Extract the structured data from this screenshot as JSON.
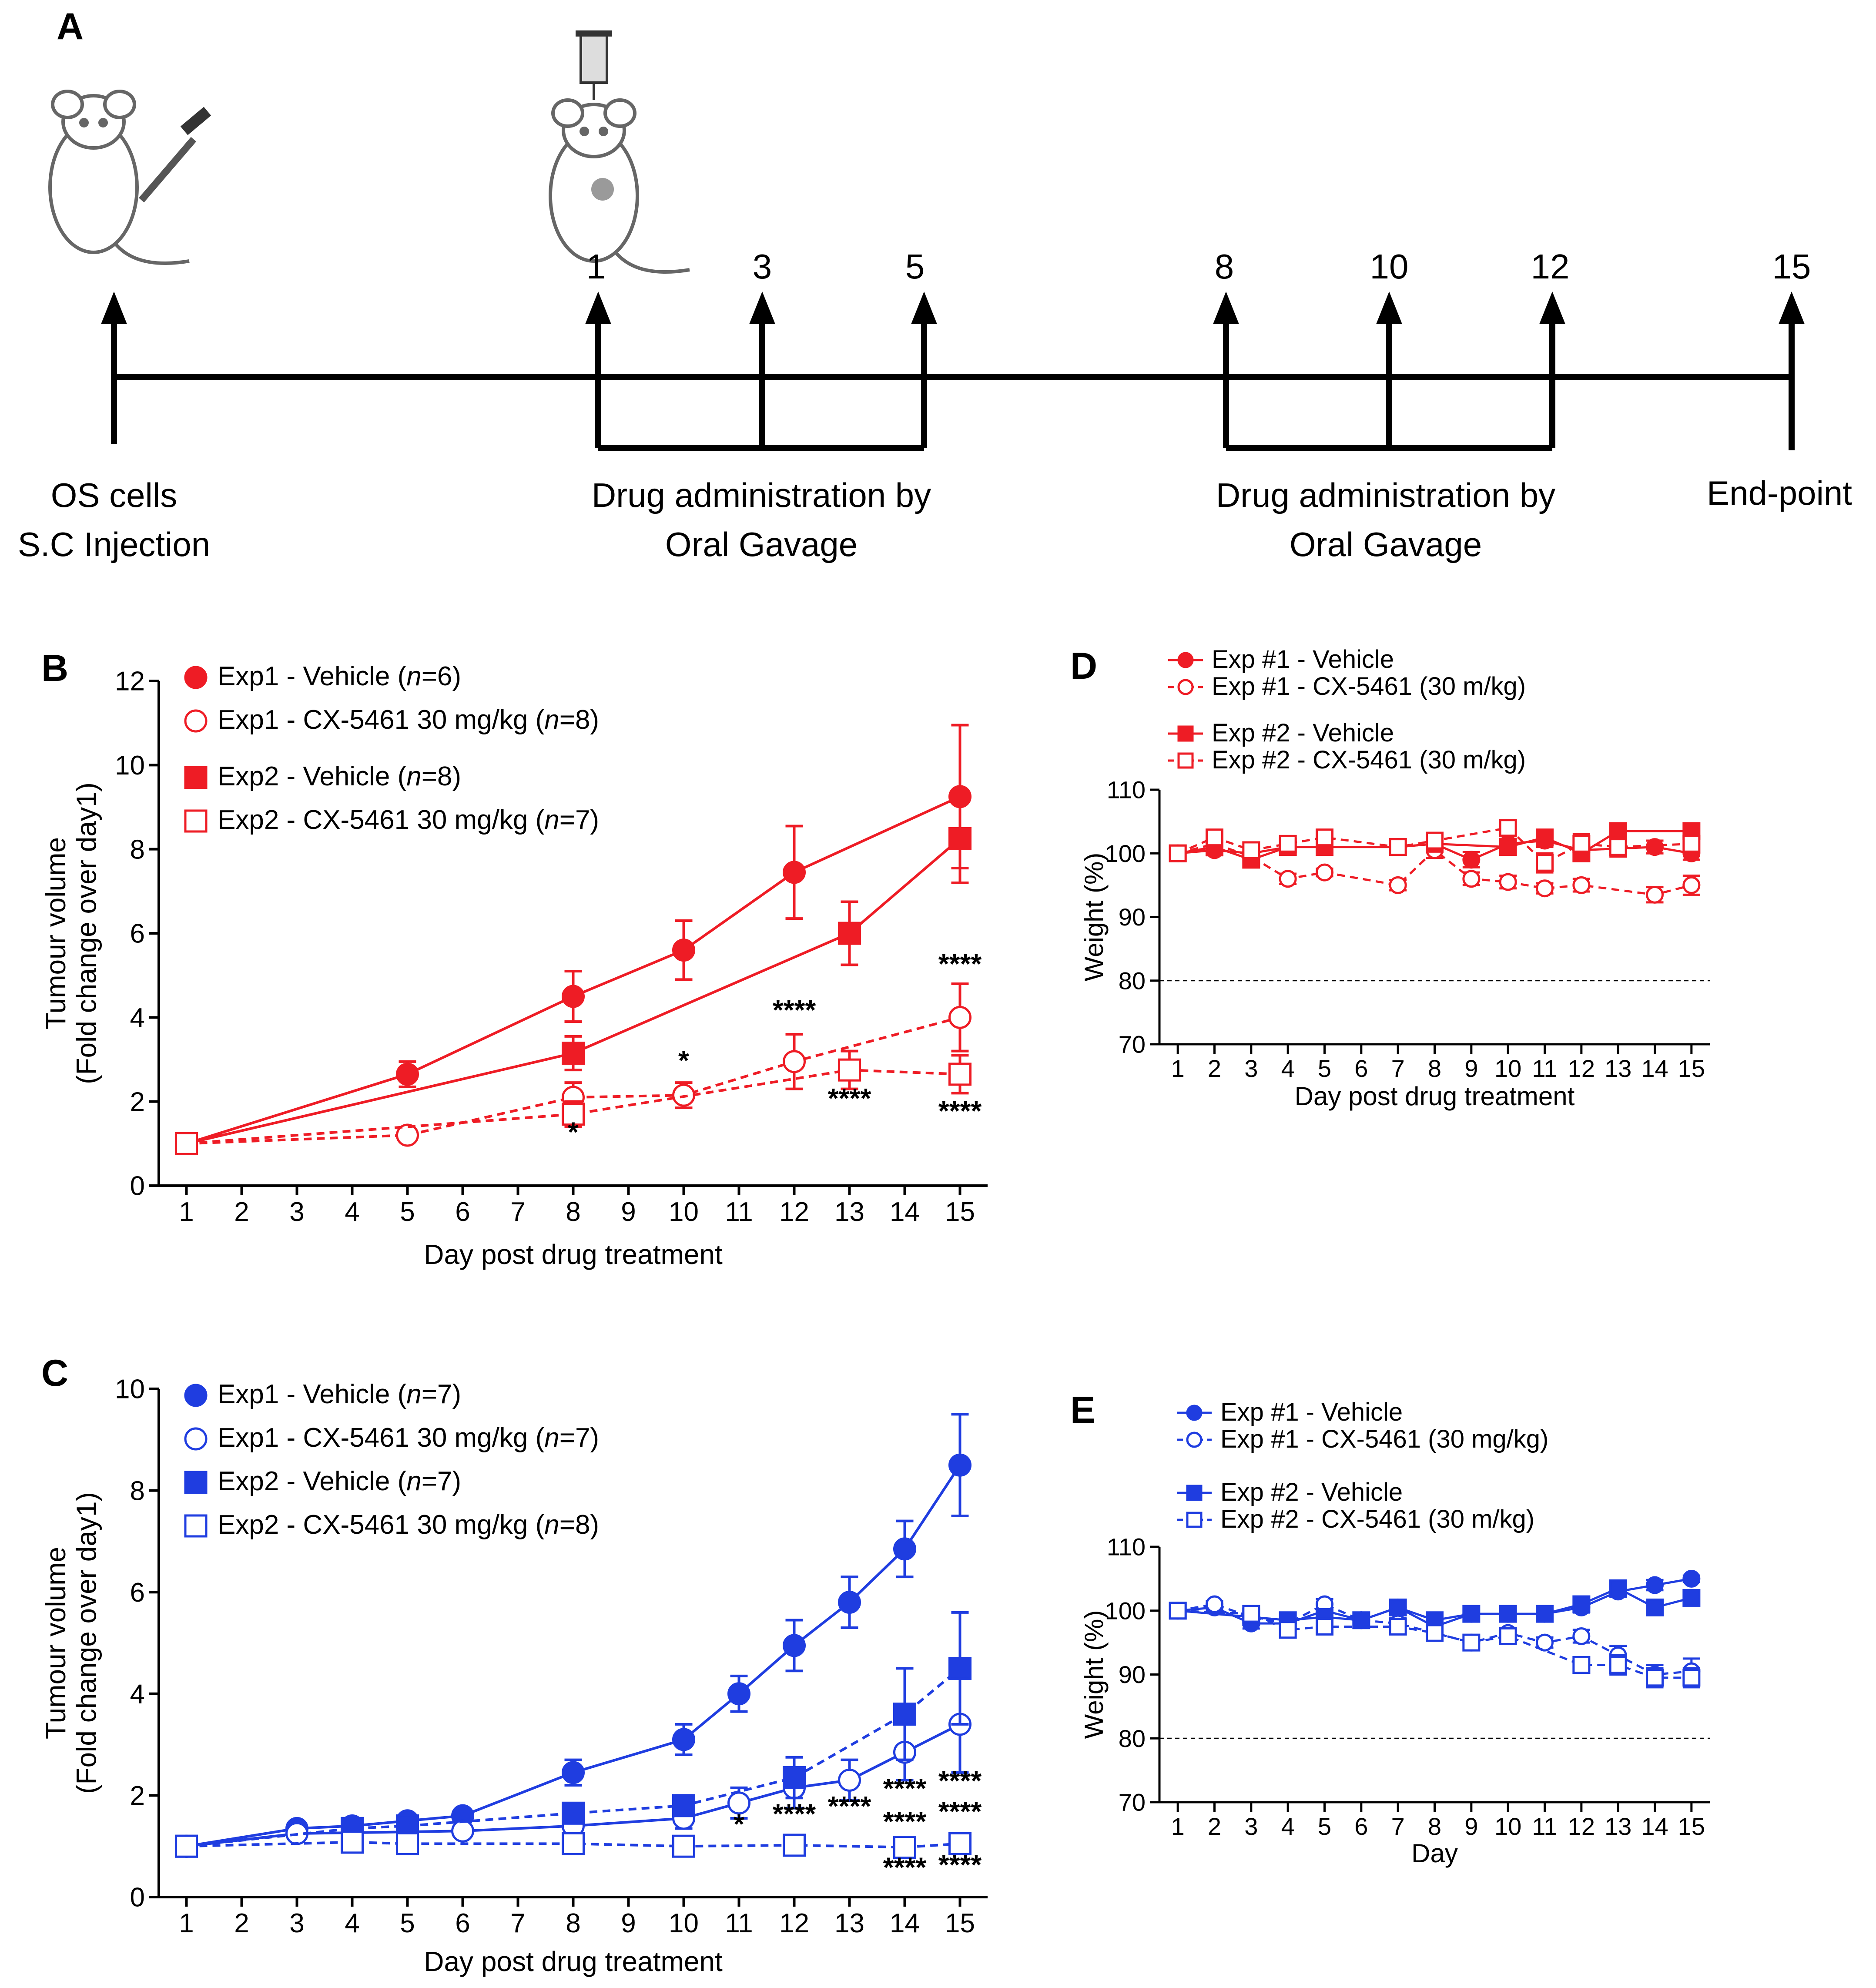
{
  "panel_letters": {
    "a": "A",
    "b": "B",
    "c": "C",
    "d": "D",
    "e": "E"
  },
  "timeline": {
    "days": [
      "1",
      "3",
      "5",
      "8",
      "10",
      "12",
      "15"
    ],
    "events": {
      "injection": [
        "OS cells",
        "S.C Injection"
      ],
      "dosing_1": [
        "Drug administration by",
        "Oral Gavage"
      ],
      "dosing_2": [
        "Drug administration by",
        "Oral Gavage"
      ],
      "endpoint": [
        "End-point"
      ]
    }
  },
  "colors": {
    "red": "#ee1c25",
    "blue": "#1f3de0",
    "black": "#000000"
  },
  "chart_data": [
    {
      "id": "B",
      "type": "line",
      "title": "",
      "xlabel": "Day post drug treatment",
      "ylabel": [
        "Tumour volume",
        "(Fold change over day1)"
      ],
      "xlim": [
        0.5,
        15.5
      ],
      "ylim": [
        0,
        12
      ],
      "x_ticks": [
        1,
        2,
        3,
        4,
        5,
        6,
        7,
        8,
        9,
        10,
        11,
        12,
        13,
        14,
        15
      ],
      "y_ticks": [
        0,
        2,
        4,
        6,
        8,
        10,
        12
      ],
      "series": [
        {
          "name": "Exp1 - Vehicle",
          "n": "6",
          "marker": "circle",
          "filled": true,
          "dashed": false,
          "x": [
            1,
            5,
            8,
            10,
            12,
            15
          ],
          "y": [
            1.0,
            2.65,
            4.5,
            5.6,
            7.45,
            9.25
          ],
          "err": [
            0.05,
            0.3,
            0.6,
            0.7,
            1.1,
            1.7
          ]
        },
        {
          "name": "Exp1 - CX-5461 30 mg/kg",
          "n": "8",
          "marker": "circle",
          "filled": false,
          "dashed": true,
          "x": [
            1,
            5,
            8,
            10,
            12,
            15
          ],
          "y": [
            1.0,
            1.2,
            2.1,
            2.15,
            2.95,
            4.0
          ],
          "err": [
            0.05,
            0.1,
            0.35,
            0.3,
            0.65,
            0.8
          ]
        },
        {
          "name": "Exp2 - Vehicle",
          "n": "8",
          "marker": "square",
          "filled": true,
          "dashed": false,
          "x": [
            1,
            8,
            13,
            15
          ],
          "y": [
            1.0,
            3.15,
            6.0,
            8.25
          ],
          "err": [
            0.05,
            0.4,
            0.75,
            1.05
          ]
        },
        {
          "name": "Exp2 - CX-5461 30 mg/kg",
          "n": "7",
          "marker": "square",
          "filled": false,
          "dashed": true,
          "x": [
            1,
            8,
            13,
            15
          ],
          "y": [
            1.0,
            1.7,
            2.75,
            2.65
          ],
          "err": [
            0.05,
            0.3,
            0.45,
            0.45
          ]
        }
      ],
      "annotations": [
        {
          "x": 8,
          "y": 1.05,
          "text": "*"
        },
        {
          "x": 10,
          "y": 2.75,
          "text": "*"
        },
        {
          "x": 12,
          "y": 3.95,
          "text": "****"
        },
        {
          "x": 13,
          "y": 1.85,
          "text": "****"
        },
        {
          "x": 15,
          "y": 5.05,
          "text": "****"
        },
        {
          "x": 15,
          "y": 1.55,
          "text": "****"
        }
      ]
    },
    {
      "id": "C",
      "type": "line",
      "title": "",
      "xlabel": "Day post drug treatment",
      "ylabel": [
        "Tumour volume",
        "(Fold change over day1)"
      ],
      "xlim": [
        0.5,
        15.5
      ],
      "ylim": [
        0,
        10
      ],
      "x_ticks": [
        1,
        2,
        3,
        4,
        5,
        6,
        7,
        8,
        9,
        10,
        11,
        12,
        13,
        14,
        15
      ],
      "y_ticks": [
        0,
        2,
        4,
        6,
        8,
        10
      ],
      "series": [
        {
          "name": "Exp1 - Vehicle",
          "n": "7",
          "marker": "circle",
          "filled": true,
          "dashed": false,
          "x": [
            1,
            3,
            4,
            5,
            6,
            8,
            10,
            11,
            12,
            13,
            14,
            15
          ],
          "y": [
            1.0,
            1.35,
            1.4,
            1.5,
            1.6,
            2.45,
            3.1,
            4.0,
            4.95,
            5.8,
            6.85,
            8.5
          ],
          "err": [
            0.05,
            0.08,
            0.08,
            0.1,
            0.1,
            0.25,
            0.3,
            0.35,
            0.5,
            0.5,
            0.55,
            1.0
          ]
        },
        {
          "name": "Exp1 - CX-5461 30 mg/kg",
          "n": "7",
          "marker": "circle",
          "filled": false,
          "dashed": false,
          "x": [
            1,
            3,
            6,
            8,
            10,
            11,
            12,
            13,
            14,
            15
          ],
          "y": [
            1.0,
            1.25,
            1.3,
            1.4,
            1.55,
            1.85,
            2.15,
            2.3,
            2.85,
            3.4
          ],
          "err": [
            0.05,
            0.08,
            0.08,
            0.1,
            0.2,
            0.3,
            0.4,
            0.4,
            0.55,
            0.95
          ]
        },
        {
          "name": "Exp2 - Vehicle",
          "n": "7",
          "marker": "square",
          "filled": true,
          "dashed": true,
          "x": [
            1,
            4,
            5,
            8,
            10,
            12,
            14,
            15
          ],
          "y": [
            1.0,
            1.35,
            1.4,
            1.65,
            1.8,
            2.35,
            3.6,
            4.5
          ],
          "err": [
            0.05,
            0.08,
            0.08,
            0.15,
            0.2,
            0.4,
            0.9,
            1.1
          ]
        },
        {
          "name": "Exp2 - CX-5461 30 mg/kg",
          "n": "8",
          "marker": "square",
          "filled": false,
          "dashed": true,
          "x": [
            1,
            4,
            5,
            8,
            10,
            12,
            14,
            15
          ],
          "y": [
            1.0,
            1.08,
            1.05,
            1.05,
            1.0,
            1.02,
            0.98,
            1.05
          ],
          "err": [
            0.03,
            0.05,
            0.05,
            0.05,
            0.05,
            0.05,
            0.05,
            0.05
          ]
        }
      ],
      "annotations": [
        {
          "x": 11,
          "y": 1.25,
          "text": "*"
        },
        {
          "x": 12,
          "y": 1.45,
          "text": "****"
        },
        {
          "x": 13,
          "y": 1.6,
          "text": "****"
        },
        {
          "x": 14,
          "y": 1.95,
          "text": "****"
        },
        {
          "x": 15,
          "y": 2.1,
          "text": "****"
        },
        {
          "x": 14,
          "y": 1.3,
          "text": "****"
        },
        {
          "x": 15,
          "y": 1.5,
          "text": "****"
        }
      ],
      "annotations_below": [
        {
          "x": 14,
          "y": 0.4,
          "text": "****"
        },
        {
          "x": 15,
          "y": 0.45,
          "text": "****"
        }
      ]
    },
    {
      "id": "D",
      "type": "line",
      "title": "",
      "xlabel": "Day post drug treatment",
      "ylabel": [
        "Weight  (%)"
      ],
      "xlim": [
        0.5,
        15.5
      ],
      "ylim": [
        70,
        110
      ],
      "x_ticks": [
        1,
        2,
        3,
        4,
        5,
        6,
        7,
        8,
        9,
        10,
        11,
        12,
        13,
        14,
        15
      ],
      "y_ticks": [
        70,
        80,
        90,
        100,
        110
      ],
      "reference_line": 80,
      "series": [
        {
          "name": "Exp #1 - Vehicle",
          "marker": "circle",
          "filled": true,
          "dashed": false,
          "x": [
            1,
            2,
            3,
            4,
            5,
            7,
            8,
            9,
            10,
            11,
            12,
            14,
            15
          ],
          "y": [
            100,
            100.5,
            100,
            101,
            101,
            101,
            101.5,
            99,
            101.5,
            102,
            100.5,
            101,
            100
          ],
          "err": [
            0.3,
            0.8,
            0.8,
            0.8,
            0.8,
            1,
            1,
            1.2,
            1.2,
            1,
            1.2,
            1,
            1
          ]
        },
        {
          "name": "Exp #1 - CX-5461 (30 m/kg)",
          "marker": "circle",
          "filled": false,
          "dashed": true,
          "x": [
            1,
            2,
            3,
            4,
            5,
            7,
            8,
            9,
            10,
            11,
            12,
            14,
            15
          ],
          "y": [
            100,
            101.5,
            99.5,
            96,
            97,
            95,
            100.5,
            96,
            95.5,
            94.5,
            95,
            93.5,
            95
          ],
          "err": [
            0.3,
            1,
            0.8,
            0.8,
            0.6,
            0.8,
            1.2,
            1,
            1,
            0.8,
            1,
            1.2,
            1.5
          ]
        },
        {
          "name": "Exp #2 - Vehicle",
          "marker": "square",
          "filled": true,
          "dashed": false,
          "x": [
            1,
            2,
            3,
            4,
            5,
            7,
            8,
            10,
            11,
            12,
            13,
            15
          ],
          "y": [
            100,
            101,
            99,
            101,
            101,
            101,
            101.5,
            101,
            102.5,
            100,
            103.5,
            103.5
          ],
          "err": [
            0.3,
            1,
            0.8,
            0.8,
            0.8,
            1,
            1,
            1,
            1,
            1.2,
            1,
            1
          ]
        },
        {
          "name": "Exp #2 - CX-5461 (30 m/kg)",
          "marker": "square",
          "filled": false,
          "dashed": true,
          "x": [
            1,
            2,
            3,
            4,
            5,
            7,
            8,
            10,
            11,
            12,
            13,
            15
          ],
          "y": [
            100,
            102.5,
            100.5,
            101.5,
            102.5,
            101,
            102,
            104,
            98.5,
            101.5,
            101,
            101.5
          ],
          "err": [
            0.3,
            1,
            0.8,
            0.8,
            1,
            1,
            1,
            1,
            1.5,
            1.5,
            1.5,
            1.2
          ]
        }
      ]
    },
    {
      "id": "E",
      "type": "line",
      "title": "",
      "xlabel": "Day",
      "ylabel": [
        "Weight  (%)"
      ],
      "xlim": [
        0.5,
        15.5
      ],
      "ylim": [
        70,
        110
      ],
      "x_ticks": [
        1,
        2,
        3,
        4,
        5,
        6,
        7,
        8,
        9,
        10,
        11,
        12,
        13,
        14,
        15
      ],
      "y_ticks": [
        70,
        80,
        90,
        100,
        110
      ],
      "reference_line": 80,
      "series": [
        {
          "name": "Exp #1 - Vehicle",
          "marker": "circle",
          "filled": true,
          "dashed": false,
          "x": [
            1,
            2,
            3,
            4,
            5,
            6,
            7,
            8,
            9,
            10,
            11,
            12,
            13,
            14,
            15
          ],
          "y": [
            100,
            100.5,
            98,
            98,
            100,
            98.5,
            100.5,
            97.5,
            99.5,
            99.5,
            99.5,
            100.5,
            103,
            104,
            105
          ],
          "err": [
            0.3,
            0.5,
            0.8,
            0.8,
            0.8,
            0.5,
            0.8,
            0.8,
            0.8,
            0.5,
            0.5,
            0.8,
            0.8,
            0.8,
            0.5
          ]
        },
        {
          "name": "Exp #1 - CX-5461 (30 mg/kg)",
          "marker": "circle",
          "filled": false,
          "dashed": true,
          "x": [
            1,
            2,
            3,
            4,
            5,
            6,
            7,
            8,
            9,
            10,
            11,
            12,
            13,
            14,
            15
          ],
          "y": [
            100,
            101,
            99,
            98,
            101,
            98.5,
            98,
            96.5,
            95,
            96.5,
            95,
            96,
            93,
            90,
            90.5
          ],
          "err": [
            0.3,
            0.5,
            0.8,
            0.8,
            0.8,
            0.5,
            0.8,
            0.8,
            0.8,
            0.8,
            0.8,
            1,
            1.5,
            1.5,
            2
          ]
        },
        {
          "name": "Exp #2 - Vehicle",
          "marker": "square",
          "filled": true,
          "dashed": false,
          "x": [
            1,
            3,
            4,
            5,
            6,
            7,
            8,
            9,
            10,
            11,
            12,
            13,
            14,
            15
          ],
          "y": [
            100,
            99,
            98.5,
            99,
            98.5,
            100.5,
            98.5,
            99.5,
            99.5,
            99.5,
            101,
            103.5,
            100.5,
            102
          ],
          "err": [
            0.3,
            0.8,
            0.8,
            0.8,
            0.5,
            0.8,
            0.8,
            0.8,
            0.5,
            0.5,
            0.8,
            0.8,
            0.5,
            0.5
          ]
        },
        {
          "name": "Exp #2 - CX-5461 (30 m/kg)",
          "marker": "square",
          "filled": false,
          "dashed": true,
          "x": [
            1,
            3,
            4,
            5,
            7,
            8,
            9,
            10,
            12,
            13,
            14,
            15
          ],
          "y": [
            100,
            99.5,
            97,
            97.5,
            97.5,
            96.5,
            95,
            96,
            91.5,
            91.5,
            89.5,
            89.5
          ],
          "err": [
            0.3,
            0.8,
            0.8,
            0.8,
            0.8,
            0.8,
            0.8,
            1,
            0.8,
            1.5,
            1.5,
            1.5
          ]
        }
      ]
    }
  ]
}
